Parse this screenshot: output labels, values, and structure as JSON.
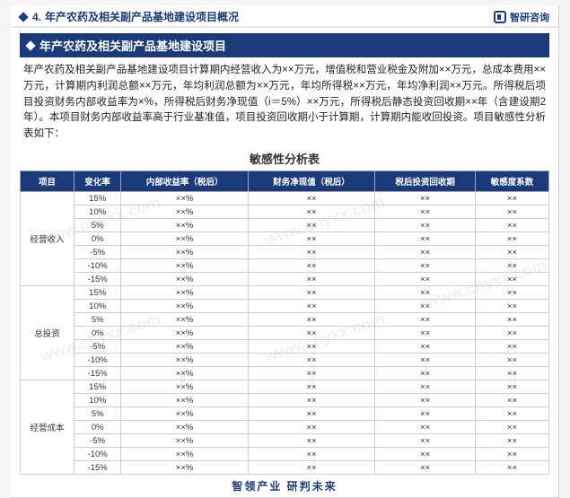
{
  "header": {
    "section_number": "4.",
    "section_title": "年产农药及相关副产品基地建设项目概况",
    "brand_text": "智研咨询"
  },
  "titlebar": "年产农药及相关副产品基地建设项目",
  "paragraph": "年产农药及相关副产品基地建设项目计算期内经营收入为××万元，增值税和营业税金及附加××万元，总成本费用××万元，计算期内利润总额××万元，年均利润总额为××万元，年均所得税××万元，年均净利润××万元。所得税后项目投资财务内部收益率为×%，所得税后财务净现值（i＝5%）××万元，所得税后静态投资回收期××年（含建设期2年）。本项目财务内部收益率高于行业基准值，项目投资回收期小于计算期，计算期内能收回投资。项目敏感性分析表如下：",
  "table": {
    "title": "敏感性分析表",
    "columns": [
      "项目",
      "变化率",
      "内部收益率（税后）",
      "财务净现值（税后）",
      "税后投资回收期",
      "敏感度系数"
    ],
    "groups": [
      {
        "name": "经营收入",
        "rates": [
          "15%",
          "10%",
          "5%",
          "0%",
          "-5%",
          "-10%",
          "-15%"
        ]
      },
      {
        "name": "总投资",
        "rates": [
          "15%",
          "10%",
          "5%",
          "0%",
          "-5%",
          "-10%",
          "-15%"
        ]
      },
      {
        "name": "经营成本",
        "rates": [
          "15%",
          "10%",
          "5%",
          "0%",
          "-5%",
          "-10%",
          "-15%"
        ]
      }
    ],
    "cell_value": "××",
    "cell_value_pct": "××%"
  },
  "footer": "智领产业 研判未来",
  "watermark": "www.chyxx.com",
  "colors": {
    "brand": "#1b3a7a",
    "border": "#cfcfcf",
    "bg": "#ffffff"
  }
}
